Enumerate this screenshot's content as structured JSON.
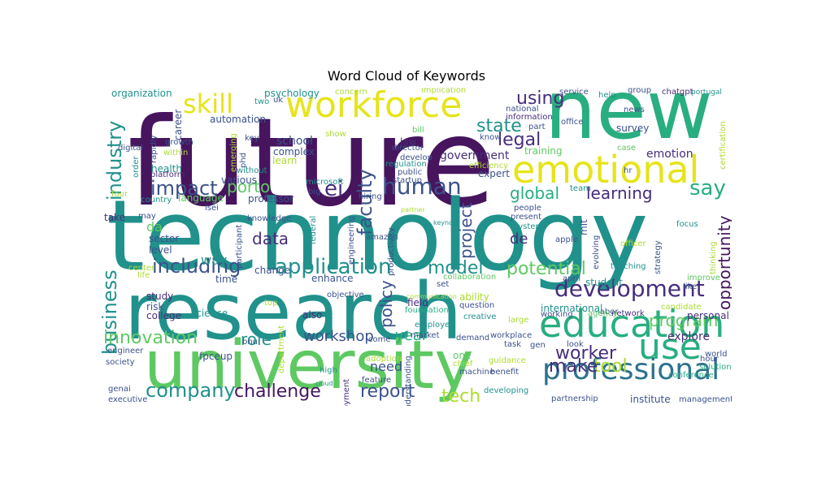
{
  "title": "Word Cloud of Keywords",
  "palette": {
    "dark_purple": "#46155e",
    "purple": "#472d7b",
    "indigo": "#3b528b",
    "blue": "#2c728e",
    "teal": "#21918c",
    "green_teal": "#28ae80",
    "green": "#5ec962",
    "lime": "#addc30",
    "yellow": "#e6e419"
  },
  "words": [
    {
      "text": "future",
      "color": "dark_purple"
    },
    {
      "text": "technology",
      "color": "teal"
    },
    {
      "text": "research",
      "color": "teal"
    },
    {
      "text": "university",
      "color": "green"
    },
    {
      "text": "new",
      "color": "green_teal"
    },
    {
      "text": "workforce",
      "color": "yellow"
    },
    {
      "text": "emotional",
      "color": "yellow"
    },
    {
      "text": "education",
      "color": "green_teal"
    },
    {
      "text": "professional",
      "color": "blue"
    },
    {
      "text": "development",
      "color": "purple"
    },
    {
      "text": "use",
      "color": "green_teal"
    },
    {
      "text": "application",
      "color": "teal"
    },
    {
      "text": "human",
      "color": "indigo"
    },
    {
      "text": "skill",
      "color": "yellow"
    },
    {
      "text": "impact",
      "color": "indigo"
    },
    {
      "text": "ei",
      "color": "purple"
    },
    {
      "text": "say",
      "color": "green_teal"
    },
    {
      "text": "business",
      "color": "teal"
    },
    {
      "text": "industry",
      "color": "teal"
    },
    {
      "text": "including",
      "color": "indigo"
    },
    {
      "text": "company",
      "color": "teal"
    },
    {
      "text": "challenge",
      "color": "dark_purple"
    },
    {
      "text": "report",
      "color": "indigo"
    },
    {
      "text": "tech",
      "color": "lime"
    },
    {
      "text": "worker",
      "color": "purple"
    },
    {
      "text": "tool",
      "color": "lime"
    },
    {
      "text": "make",
      "color": "purple"
    },
    {
      "text": "innovation",
      "color": "green"
    },
    {
      "text": "opportunity",
      "color": "dark_purple"
    },
    {
      "text": "faculty",
      "color": "indigo"
    },
    {
      "text": "potential",
      "color": "green"
    },
    {
      "text": "model",
      "color": "teal"
    },
    {
      "text": "learning",
      "color": "purple"
    },
    {
      "text": "state",
      "color": "teal"
    },
    {
      "text": "legal",
      "color": "purple"
    },
    {
      "text": "using",
      "color": "purple"
    },
    {
      "text": "global",
      "color": "green_teal"
    },
    {
      "text": "project",
      "color": "indigo"
    },
    {
      "text": "policy",
      "color": "indigo"
    },
    {
      "text": "porto",
      "color": "green"
    },
    {
      "text": "data",
      "color": "purple"
    },
    {
      "text": "program",
      "color": "green"
    },
    {
      "text": "role",
      "color": "teal"
    },
    {
      "text": "workshop",
      "color": "indigo"
    },
    {
      "text": "year",
      "color": "green_teal"
    },
    {
      "text": "need",
      "color": "indigo"
    },
    {
      "text": "explore",
      "color": "purple"
    },
    {
      "text": "emotion",
      "color": "purple"
    },
    {
      "text": "government",
      "color": "purple"
    },
    {
      "text": "de",
      "color": "purple"
    },
    {
      "text": "da",
      "color": "green"
    },
    {
      "text": "way",
      "color": "teal"
    },
    {
      "text": "survey",
      "color": "indigo"
    },
    {
      "text": "expert",
      "color": "indigo"
    },
    {
      "text": "training",
      "color": "green"
    },
    {
      "text": "health",
      "color": "teal"
    },
    {
      "text": "sector",
      "color": "indigo"
    },
    {
      "text": "level",
      "color": "indigo"
    },
    {
      "text": "college",
      "color": "purple"
    },
    {
      "text": "science",
      "color": "teal"
    },
    {
      "text": "study",
      "color": "purple"
    },
    {
      "text": "risk",
      "color": "indigo"
    },
    {
      "text": "time",
      "color": "indigo"
    },
    {
      "text": "change",
      "color": "indigo"
    },
    {
      "text": "also",
      "color": "purple"
    },
    {
      "text": "enhance",
      "color": "indigo"
    },
    {
      "text": "field",
      "color": "purple"
    },
    {
      "text": "foundation",
      "color": "green_teal"
    },
    {
      "text": "market",
      "color": "indigo"
    },
    {
      "text": "employee",
      "color": "teal"
    },
    {
      "text": "question",
      "color": "indigo"
    },
    {
      "text": "creative",
      "color": "teal"
    },
    {
      "text": "ability",
      "color": "lime"
    },
    {
      "text": "collaboration",
      "color": "green"
    },
    {
      "text": "demand",
      "color": "indigo"
    },
    {
      "text": "one",
      "color": "green"
    },
    {
      "text": "chief",
      "color": "lime"
    },
    {
      "text": "task",
      "color": "indigo"
    },
    {
      "text": "look",
      "color": "indigo"
    },
    {
      "text": "labor",
      "color": "indigo"
    },
    {
      "text": "network",
      "color": "purple"
    },
    {
      "text": "personal",
      "color": "purple"
    },
    {
      "text": "world",
      "color": "indigo"
    },
    {
      "text": "hour",
      "color": "indigo"
    },
    {
      "text": "solution",
      "color": "green_teal"
    },
    {
      "text": "conference",
      "color": "green_teal"
    },
    {
      "text": "management",
      "color": "indigo"
    },
    {
      "text": "institute",
      "color": "indigo"
    },
    {
      "text": "partnership",
      "color": "indigo"
    },
    {
      "text": "developing",
      "color": "teal"
    },
    {
      "text": "feature",
      "color": "indigo"
    },
    {
      "text": "high",
      "color": "teal"
    },
    {
      "text": "employment",
      "color": "purple"
    },
    {
      "text": "machine",
      "color": "indigo"
    },
    {
      "text": "benefit",
      "color": "indigo"
    },
    {
      "text": "workplace",
      "color": "indigo"
    },
    {
      "text": "gen",
      "color": "indigo"
    },
    {
      "text": "international",
      "color": "teal"
    },
    {
      "text": "student",
      "color": "teal"
    },
    {
      "text": "april",
      "color": "indigo"
    },
    {
      "text": "like",
      "color": "indigo"
    },
    {
      "text": "apple",
      "color": "indigo"
    },
    {
      "text": "system",
      "color": "teal"
    },
    {
      "text": "people",
      "color": "indigo"
    },
    {
      "text": "present",
      "color": "indigo"
    },
    {
      "text": "focus",
      "color": "teal"
    },
    {
      "text": "officer",
      "color": "lime"
    },
    {
      "text": "teaching",
      "color": "teal"
    },
    {
      "text": "strategy",
      "color": "indigo"
    },
    {
      "text": "thinking",
      "color": "lime"
    },
    {
      "text": "improve",
      "color": "green"
    },
    {
      "text": "candidate",
      "color": "lime"
    },
    {
      "text": "agency",
      "color": "green"
    },
    {
      "text": "working",
      "color": "indigo"
    },
    {
      "text": "evolving",
      "color": "indigo"
    },
    {
      "text": "mit",
      "color": "indigo"
    },
    {
      "text": "team",
      "color": "teal"
    },
    {
      "text": "hr",
      "color": "indigo"
    },
    {
      "text": "certification",
      "color": "lime"
    },
    {
      "text": "case",
      "color": "green"
    },
    {
      "text": "office",
      "color": "indigo"
    },
    {
      "text": "news",
      "color": "indigo"
    },
    {
      "text": "chatgpt",
      "color": "purple"
    },
    {
      "text": "portugal",
      "color": "teal"
    },
    {
      "text": "group",
      "color": "indigo"
    },
    {
      "text": "service",
      "color": "indigo"
    },
    {
      "text": "help",
      "color": "teal"
    },
    {
      "text": "national",
      "color": "indigo"
    },
    {
      "text": "information",
      "color": "purple"
    },
    {
      "text": "part",
      "color": "indigo"
    },
    {
      "text": "know",
      "color": "indigo"
    },
    {
      "text": "bill",
      "color": "green"
    },
    {
      "text": "law",
      "color": "purple"
    },
    {
      "text": "director",
      "color": "indigo"
    },
    {
      "text": "develop",
      "color": "indigo"
    },
    {
      "text": "efficiency",
      "color": "lime"
    },
    {
      "text": "regulation",
      "color": "teal"
    },
    {
      "text": "public",
      "color": "indigo"
    },
    {
      "text": "startup",
      "color": "indigo"
    },
    {
      "text": "hiring",
      "color": "indigo"
    },
    {
      "text": "big",
      "color": "indigo"
    },
    {
      "text": "microsoft",
      "color": "teal"
    },
    {
      "text": "implication",
      "color": "lime"
    },
    {
      "text": "concern",
      "color": "lime"
    },
    {
      "text": "psychology",
      "color": "teal"
    },
    {
      "text": "uk",
      "color": "indigo"
    },
    {
      "text": "two",
      "color": "teal"
    },
    {
      "text": "organization",
      "color": "teal"
    },
    {
      "text": "automation",
      "color": "indigo"
    },
    {
      "text": "school",
      "color": "indigo"
    },
    {
      "text": "key",
      "color": "indigo"
    },
    {
      "text": "complex",
      "color": "indigo"
    },
    {
      "text": "learn",
      "color": "lime"
    },
    {
      "text": "show",
      "color": "lime"
    },
    {
      "text": "phd",
      "color": "indigo"
    },
    {
      "text": "emerging",
      "color": "lime"
    },
    {
      "text": "without",
      "color": "teal"
    },
    {
      "text": "various",
      "color": "indigo"
    },
    {
      "text": "professor",
      "color": "indigo"
    },
    {
      "text": "career",
      "color": "indigo"
    },
    {
      "text": "rapidly",
      "color": "indigo"
    },
    {
      "text": "growth",
      "color": "indigo"
    },
    {
      "text": "within",
      "color": "lime"
    },
    {
      "text": "digital",
      "color": "indigo"
    },
    {
      "text": "order",
      "color": "teal"
    },
    {
      "text": "platform",
      "color": "purple"
    },
    {
      "text": "language",
      "color": "green"
    },
    {
      "text": "country",
      "color": "teal"
    },
    {
      "text": "four",
      "color": "lime"
    },
    {
      "text": "isei",
      "color": "indigo"
    },
    {
      "text": "take",
      "color": "purple"
    },
    {
      "text": "may",
      "color": "indigo"
    },
    {
      "text": "participant",
      "color": "indigo"
    },
    {
      "text": "knowledge",
      "color": "indigo"
    },
    {
      "text": "federal",
      "color": "teal"
    },
    {
      "text": "engineering",
      "color": "indigo"
    },
    {
      "text": "amazon",
      "color": "indigo"
    },
    {
      "text": "productivity",
      "color": "indigo"
    },
    {
      "text": "partner",
      "color": "lime"
    },
    {
      "text": "keynote",
      "color": "teal"
    },
    {
      "text": "center",
      "color": "lime"
    },
    {
      "text": "life",
      "color": "lime"
    },
    {
      "text": "top",
      "color": "lime"
    },
    {
      "text": "set",
      "color": "indigo"
    },
    {
      "text": "objective",
      "color": "indigo"
    },
    {
      "text": "communication",
      "color": "lime"
    },
    {
      "text": "bnu",
      "color": "indigo"
    },
    {
      "text": "fpceup",
      "color": "indigo"
    },
    {
      "text": "department",
      "color": "lime"
    },
    {
      "text": "come",
      "color": "indigo"
    },
    {
      "text": "adoption",
      "color": "lime"
    },
    {
      "text": "understanding",
      "color": "indigo"
    },
    {
      "text": "cloud",
      "color": "teal"
    },
    {
      "text": "engineer",
      "color": "indigo"
    },
    {
      "text": "society",
      "color": "indigo"
    },
    {
      "text": "genai",
      "color": "indigo"
    },
    {
      "text": "executive",
      "color": "indigo"
    },
    {
      "text": "guidance",
      "color": "lime"
    },
    {
      "text": "large",
      "color": "lime"
    }
  ]
}
